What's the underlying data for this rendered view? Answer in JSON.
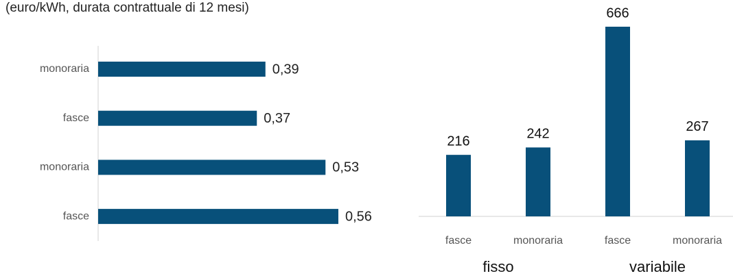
{
  "subtitle": "(euro/kWh, durata contrattuale di 12 mesi)",
  "chart_data": [
    {
      "type": "hbar",
      "categories": [
        "monoraria",
        "fasce",
        "monoraria",
        "fasce"
      ],
      "values": [
        0.39,
        0.37,
        0.53,
        0.56
      ],
      "value_labels": [
        "0,39",
        "0,37",
        "0,53",
        "0,56"
      ],
      "color": "#08507a"
    },
    {
      "type": "bar",
      "categories": [
        "fasce",
        "monoraria",
        "fasce",
        "monoraria"
      ],
      "values": [
        216,
        242,
        666,
        267
      ],
      "color": "#08507a",
      "groups": [
        {
          "label": "fisso",
          "span": [
            0,
            1
          ]
        },
        {
          "label": "variabile",
          "span": [
            2,
            3
          ]
        }
      ]
    }
  ]
}
